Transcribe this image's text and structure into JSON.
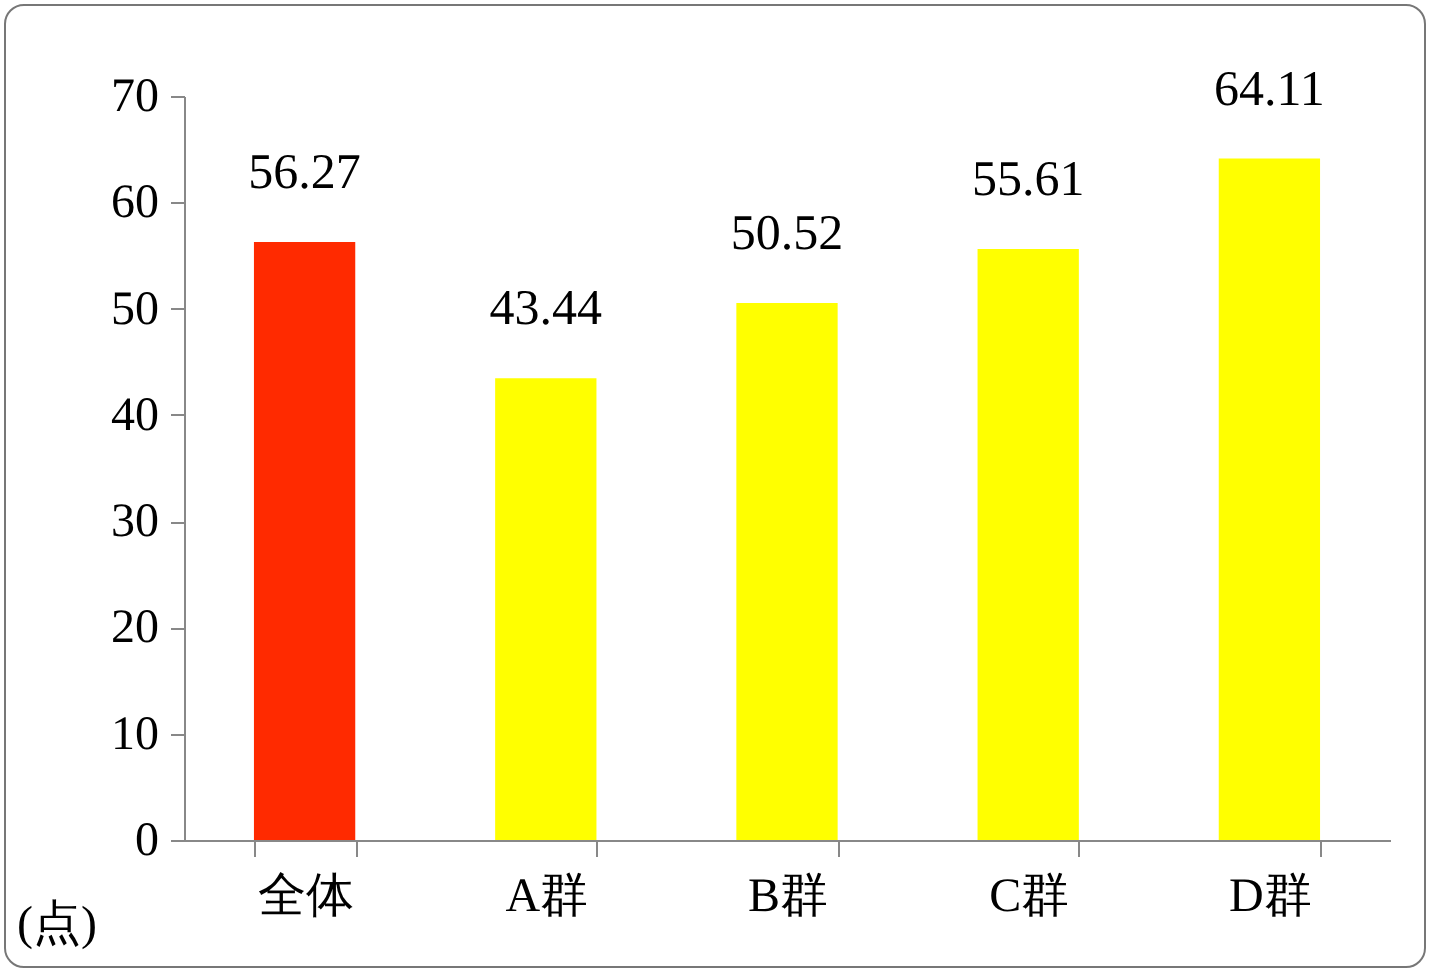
{
  "chart_data": {
    "type": "bar",
    "categories": [
      "全体",
      "A群",
      "B群",
      "C群",
      "D群"
    ],
    "values": [
      56.27,
      43.44,
      50.52,
      55.61,
      64.11
    ],
    "colors": [
      "#ff2a00",
      "#ffff00",
      "#ffff00",
      "#ffff00",
      "#ffff00"
    ],
    "ylabel": "(点)",
    "ylim": [
      0,
      70
    ],
    "yticks": [
      0,
      10,
      20,
      30,
      40,
      50,
      60,
      70
    ],
    "data_labels": true
  }
}
